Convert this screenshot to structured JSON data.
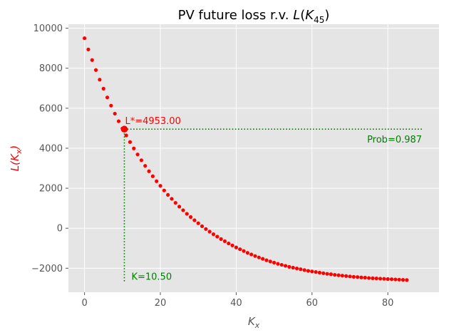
{
  "chart_data": {
    "type": "scatter",
    "title": "PV future loss r.v.",
    "title_math": "L(K45)",
    "xlabel": "K",
    "xlabel_sub": "x",
    "ylabel": "L(K",
    "ylabel_sub": "x",
    "ylabel_close": ")",
    "xlim": [
      -4.25,
      93.5
    ],
    "ylim": [
      -3200,
      10200
    ],
    "xticks": [
      0,
      20,
      40,
      60,
      80
    ],
    "yticks": [
      -2000,
      0,
      2000,
      4000,
      6000,
      8000,
      10000
    ],
    "ytick_labels": [
      "−2000",
      "0",
      "2000",
      "4000",
      "6000",
      "8000",
      "10000"
    ],
    "grid": true,
    "background": "#e5e5e5",
    "series": [
      {
        "color": "#ff0000",
        "x": [
          0,
          1,
          2,
          3,
          4,
          5,
          6,
          7,
          8,
          9,
          10,
          11,
          12,
          13,
          14,
          15,
          16,
          17,
          18,
          19,
          20,
          21,
          22,
          23,
          24,
          25,
          26,
          27,
          28,
          29,
          30,
          31,
          32,
          33,
          34,
          35,
          36,
          37,
          38,
          39,
          40,
          41,
          42,
          43,
          44,
          45,
          46,
          47,
          48,
          49,
          50,
          51,
          52,
          53,
          54,
          55,
          56,
          57,
          58,
          59,
          60,
          61,
          62,
          63,
          64,
          65,
          66,
          67,
          68,
          69,
          70,
          71,
          72,
          73,
          74,
          75,
          76,
          77,
          78,
          79,
          80,
          81,
          82,
          83,
          84,
          85
        ],
        "y": [
          9500,
          8940,
          8410,
          7910,
          7430,
          6980,
          6540,
          6130,
          5730,
          5350,
          4990,
          4640,
          4310,
          3990,
          3690,
          3400,
          3120,
          2850,
          2600,
          2350,
          2120,
          1890,
          1670,
          1470,
          1270,
          1080,
          900,
          720,
          560,
          400,
          250,
          100,
          -40,
          -170,
          -300,
          -420,
          -540,
          -650,
          -760,
          -860,
          -960,
          -1050,
          -1140,
          -1230,
          -1310,
          -1390,
          -1460,
          -1530,
          -1600,
          -1660,
          -1720,
          -1780,
          -1830,
          -1880,
          -1930,
          -1970,
          -2010,
          -2050,
          -2090,
          -2130,
          -2160,
          -2190,
          -2220,
          -2250,
          -2280,
          -2300,
          -2330,
          -2350,
          -2370,
          -2390,
          -2410,
          -2430,
          -2440,
          -2460,
          -2470,
          -2490,
          -2500,
          -2510,
          -2520,
          -2530,
          -2540,
          -2550,
          -2560,
          -2570,
          -2580,
          -2590
        ]
      }
    ],
    "highlight": {
      "x": 10.5,
      "y": 4953,
      "color": "#ff0000"
    },
    "hline": {
      "y": 4953,
      "x_from": 10.5,
      "x_to": 89,
      "color": "#008000",
      "style": "dotted"
    },
    "vline": {
      "x": 10.5,
      "y_from": -2650,
      "y_to": 4953,
      "color": "#008000",
      "style": "dotted"
    },
    "annotations": [
      {
        "text": "L*=4953.00",
        "x": 10.5,
        "y": 4953,
        "color": "#ff0000"
      },
      {
        "text": "Prob=0.987",
        "x": 89,
        "y": 4953,
        "color": "#008000"
      },
      {
        "text": "K=10.50",
        "x": 10.5,
        "y": -2650,
        "color": "#008000"
      }
    ]
  }
}
